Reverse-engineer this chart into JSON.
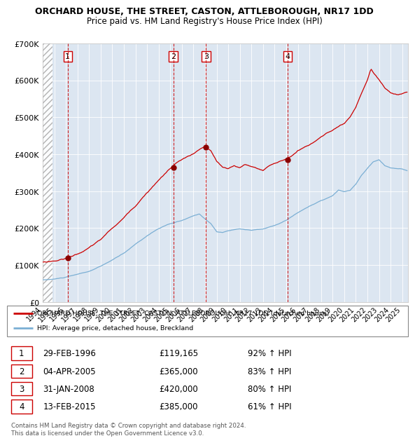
{
  "title": "ORCHARD HOUSE, THE STREET, CASTON, ATTLEBOROUGH, NR17 1DD",
  "subtitle": "Price paid vs. HM Land Registry's House Price Index (HPI)",
  "legend_line1": "ORCHARD HOUSE, THE STREET, CASTON, ATTLEBOROUGH, NR17 1DD (detached house)",
  "legend_line2": "HPI: Average price, detached house, Breckland",
  "footer": "Contains HM Land Registry data © Crown copyright and database right 2024.\nThis data is licensed under the Open Government Licence v3.0.",
  "sales": [
    {
      "num": 1,
      "date_label": "29-FEB-1996",
      "price": 119165,
      "pct": "92%",
      "date_x": 1996.16
    },
    {
      "num": 2,
      "date_label": "04-APR-2005",
      "price": 365000,
      "pct": "83%",
      "date_x": 2005.26
    },
    {
      "num": 3,
      "date_label": "31-JAN-2008",
      "price": 420000,
      "pct": "80%",
      "date_x": 2008.08
    },
    {
      "num": 4,
      "date_label": "13-FEB-2015",
      "price": 385000,
      "pct": "61%",
      "date_x": 2015.12
    }
  ],
  "hpi_color": "#7bafd4",
  "price_color": "#cc0000",
  "dot_color": "#8b0000",
  "dashed_color": "#cc0000",
  "bg_color": "#dce6f1",
  "ylim": [
    0,
    700000
  ],
  "xlim_start": 1994.0,
  "xlim_end": 2025.5,
  "xticks": [
    1994,
    1995,
    1996,
    1997,
    1998,
    1999,
    2000,
    2001,
    2002,
    2003,
    2004,
    2005,
    2006,
    2007,
    2008,
    2009,
    2010,
    2011,
    2012,
    2013,
    2014,
    2015,
    2016,
    2017,
    2018,
    2019,
    2020,
    2021,
    2022,
    2023,
    2024,
    2025
  ],
  "yticks": [
    0,
    100000,
    200000,
    300000,
    400000,
    500000,
    600000,
    700000
  ],
  "ytick_labels": [
    "£0",
    "£100K",
    "£200K",
    "£300K",
    "£400K",
    "£500K",
    "£600K",
    "£700K"
  ]
}
